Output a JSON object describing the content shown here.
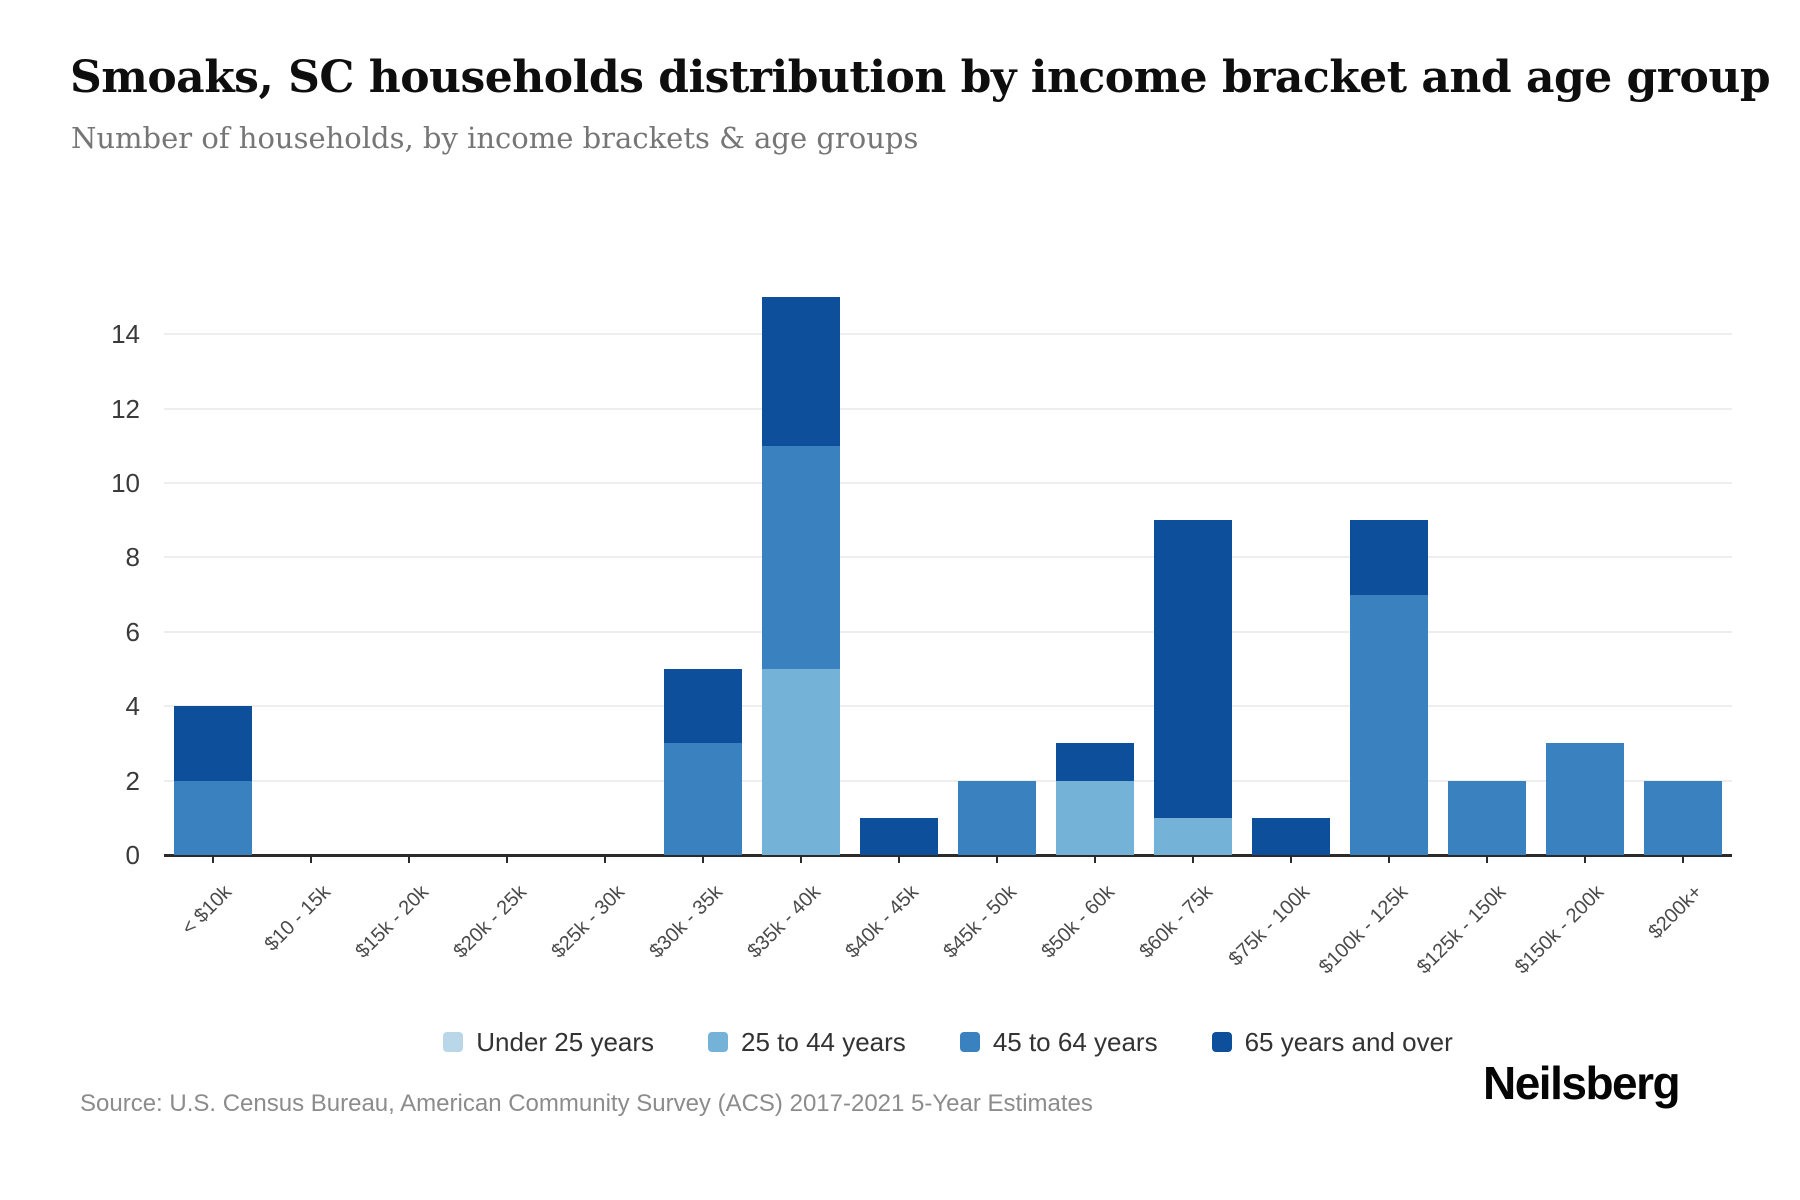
{
  "header": {
    "title": "Smoaks, SC households distribution by income bracket and age group",
    "subtitle": "Number of households, by income brackets & age groups"
  },
  "footer": {
    "source": "Source: U.S. Census Bureau, American Community Survey (ACS) 2017-2021 5-Year Estimates",
    "logo": "Neilsberg"
  },
  "colors": {
    "axis": "#2b2b2b",
    "gridline": "#eeeeee",
    "y_tick_text": "#3a3a3a",
    "x_tick_text": "#4a4a4a",
    "legend_text": "#333333",
    "subtitle_text": "#767676",
    "source_text": "#8c8c8c"
  },
  "chart_data": {
    "type": "bar",
    "stacked": true,
    "title": "Smoaks, SC households distribution by income bracket and age group",
    "subtitle": "Number of households, by income brackets & age groups",
    "xlabel": "",
    "ylabel": "",
    "ylim": [
      0,
      15
    ],
    "yticks": [
      0,
      2,
      4,
      6,
      8,
      10,
      12,
      14
    ],
    "grid": true,
    "legend_position": "bottom",
    "categories": [
      "< $10k",
      "$10 - 15k",
      "$15k - 20k",
      "$20k - 25k",
      "$25k - 30k",
      "$30k - 35k",
      "$35k - 40k",
      "$40k - 45k",
      "$45k - 50k",
      "$50k - 60k",
      "$60k - 75k",
      "$75k - 100k",
      "$100k - 125k",
      "$125k - 150k",
      "$150k - 200k",
      "$200k+"
    ],
    "series": [
      {
        "name": "Under 25 years",
        "color": "#b9d7e8",
        "values": [
          0,
          0,
          0,
          0,
          0,
          0,
          0,
          0,
          0,
          0,
          0,
          0,
          0,
          0,
          0,
          0
        ]
      },
      {
        "name": "25 to 44 years",
        "color": "#74b2d8",
        "values": [
          0,
          0,
          0,
          0,
          0,
          0,
          5,
          0,
          0,
          2,
          1,
          0,
          0,
          0,
          0,
          0
        ]
      },
      {
        "name": "45 to 64 years",
        "color": "#3a81c0",
        "values": [
          2,
          0,
          0,
          0,
          0,
          3,
          6,
          0,
          2,
          0,
          0,
          0,
          7,
          2,
          3,
          2
        ]
      },
      {
        "name": "65 years and over",
        "color": "#0d4f9a",
        "values": [
          2,
          0,
          0,
          0,
          0,
          2,
          4,
          1,
          0,
          1,
          8,
          1,
          2,
          0,
          0,
          0
        ]
      }
    ],
    "totals": [
      4,
      0,
      0,
      0,
      0,
      5,
      15,
      1,
      2,
      3,
      9,
      1,
      9,
      2,
      3,
      2
    ]
  }
}
